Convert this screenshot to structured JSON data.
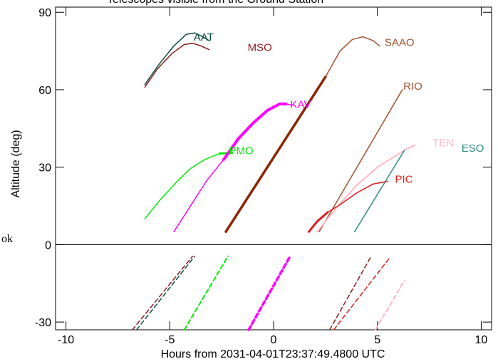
{
  "header": {
    "partial_title": "Telescopes visible from the Ground Station"
  },
  "side_mark": "ok",
  "chart_data": {
    "type": "line",
    "title": "",
    "xlabel": "Hours from 2031-04-01T23:37:49.4800 UTC",
    "ylabel": "Altitude (deg)",
    "xlim": [
      -10.5,
      10.5
    ],
    "ylim": [
      -33,
      92
    ],
    "xticks": [
      -10,
      -5,
      0,
      5,
      10
    ],
    "yticks": [
      -30,
      0,
      30,
      60,
      90
    ],
    "grid": false,
    "legend": "none",
    "separator_y": 0,
    "labels": [
      {
        "text": "AAT",
        "x": -3.85,
        "y": 79,
        "color": "#0d4d3d"
      },
      {
        "text": "MSO",
        "x": -1.25,
        "y": 75,
        "color": "#8b1a1a"
      },
      {
        "text": "SAAO",
        "x": 5.35,
        "y": 77,
        "color": "#a0522d"
      },
      {
        "text": "RIO",
        "x": 6.25,
        "y": 60,
        "color": "#a0522d"
      },
      {
        "text": "KAV",
        "x": 0.8,
        "y": 53,
        "color": "#ff00ff"
      },
      {
        "text": "PMO",
        "x": -2.15,
        "y": 35,
        "color": "#00ee00"
      },
      {
        "text": "TEN",
        "x": 7.65,
        "y": 38,
        "color": "#ffb6c1"
      },
      {
        "text": "ESO",
        "x": 9.05,
        "y": 36,
        "color": "#2e8b80"
      },
      {
        "text": "PIC",
        "x": 5.85,
        "y": 24,
        "color": "#e31a1c"
      }
    ],
    "series": [
      {
        "color": "#0d4d3d",
        "width": 1.5,
        "points": [
          [
            -6.2,
            62
          ],
          [
            -5.5,
            70
          ],
          [
            -4.8,
            77
          ],
          [
            -4.2,
            81.5
          ],
          [
            -3.8,
            82
          ],
          [
            -3.4,
            80.5
          ],
          [
            -3.1,
            79
          ]
        ]
      },
      {
        "color": "#8b1a1a",
        "width": 1.5,
        "points": [
          [
            -6.2,
            61
          ],
          [
            -5.6,
            68
          ],
          [
            -4.9,
            74
          ],
          [
            -4.3,
            77.5
          ],
          [
            -3.9,
            78
          ],
          [
            -3.5,
            77
          ],
          [
            -3.1,
            75.5
          ]
        ]
      },
      {
        "color": "#00ee00",
        "width": 1.5,
        "points": [
          [
            -6.2,
            10
          ],
          [
            -5.5,
            17
          ],
          [
            -4.7,
            24
          ],
          [
            -4,
            29.5
          ],
          [
            -3.3,
            33
          ],
          [
            -2.7,
            35
          ],
          [
            -2.3,
            35.5
          ]
        ]
      },
      {
        "color": "#00ee00",
        "width": 3,
        "points": [
          [
            -2.6,
            35.3
          ],
          [
            -2.0,
            35.5
          ]
        ]
      },
      {
        "color": "#ff00ff",
        "width": 1.5,
        "points": [
          [
            -4.8,
            5
          ],
          [
            -4.0,
            15
          ],
          [
            -3.2,
            25
          ],
          [
            -2.4,
            33
          ]
        ]
      },
      {
        "color": "#ff00ff",
        "width": 4,
        "points": [
          [
            -2.4,
            33
          ],
          [
            -1.7,
            41
          ],
          [
            -1.0,
            47
          ],
          [
            -0.3,
            52
          ],
          [
            0.3,
            54.5
          ],
          [
            0.6,
            54.5
          ]
        ]
      },
      {
        "color": "#ff00ff",
        "width": 1.5,
        "points": [
          [
            0.6,
            54.5
          ],
          [
            0.9,
            54
          ]
        ]
      },
      {
        "color": "#8b2500",
        "width": 3.5,
        "points": [
          [
            -2.3,
            5
          ],
          [
            2.5,
            65
          ]
        ]
      },
      {
        "color": "#a0522d",
        "width": 1.5,
        "points": [
          [
            2.5,
            65
          ],
          [
            3.2,
            75
          ],
          [
            3.8,
            79.5
          ],
          [
            4.3,
            80.5
          ],
          [
            4.8,
            79
          ],
          [
            5.1,
            77
          ]
        ]
      },
      {
        "color": "#a0522d",
        "width": 1.5,
        "points": [
          [
            2.2,
            5
          ],
          [
            6.2,
            60
          ]
        ]
      },
      {
        "color": "#ffb6c1",
        "width": 2,
        "points": [
          [
            2.1,
            5
          ],
          [
            3.0,
            14
          ],
          [
            4.0,
            23
          ],
          [
            5.0,
            30
          ],
          [
            5.8,
            34
          ],
          [
            6.4,
            37
          ],
          [
            6.8,
            38.5
          ]
        ]
      },
      {
        "color": "#2e8b80",
        "width": 1.5,
        "points": [
          [
            3.9,
            5
          ],
          [
            6.3,
            36.5
          ]
        ]
      },
      {
        "color": "#e31a1c",
        "width": 1.5,
        "points": [
          [
            2.6,
            12.5
          ],
          [
            3.2,
            15.5
          ],
          [
            4.0,
            20
          ],
          [
            4.8,
            23.5
          ],
          [
            5.5,
            24.5
          ]
        ]
      },
      {
        "color": "#e31a1c",
        "width": 3,
        "points": [
          [
            1.7,
            5
          ],
          [
            2.1,
            9
          ],
          [
            2.6,
            12.5
          ]
        ]
      },
      {
        "color": "#0d4d3d",
        "width": 1.5,
        "dash": "6,4",
        "points": [
          [
            -6.6,
            -33
          ],
          [
            -3.8,
            -4.5
          ]
        ]
      },
      {
        "color": "#8b1a1a",
        "width": 1.5,
        "dash": "6,4",
        "points": [
          [
            -6.8,
            -33
          ],
          [
            -3.9,
            -4.5
          ]
        ]
      },
      {
        "color": "#00ee00",
        "width": 2,
        "dash": "6,4",
        "points": [
          [
            -4.3,
            -33
          ],
          [
            -2.2,
            -4.5
          ]
        ]
      },
      {
        "color": "#ff00ff",
        "width": 3.5,
        "dash": "6,4",
        "points": [
          [
            -1.2,
            -33
          ],
          [
            0.8,
            -4.5
          ]
        ]
      },
      {
        "color": "#8b1a1a",
        "width": 1.5,
        "dash": "6,4",
        "points": [
          [
            2.7,
            -33
          ],
          [
            4.7,
            -4.5
          ]
        ]
      },
      {
        "color": "#e31a1c",
        "width": 1.5,
        "dash": "6,4",
        "points": [
          [
            2.9,
            -33
          ],
          [
            5.6,
            -5
          ]
        ]
      },
      {
        "color": "#ffb6c1",
        "width": 2,
        "dash": "6,4",
        "points": [
          [
            4.9,
            -33
          ],
          [
            6.3,
            -14
          ]
        ]
      }
    ]
  }
}
